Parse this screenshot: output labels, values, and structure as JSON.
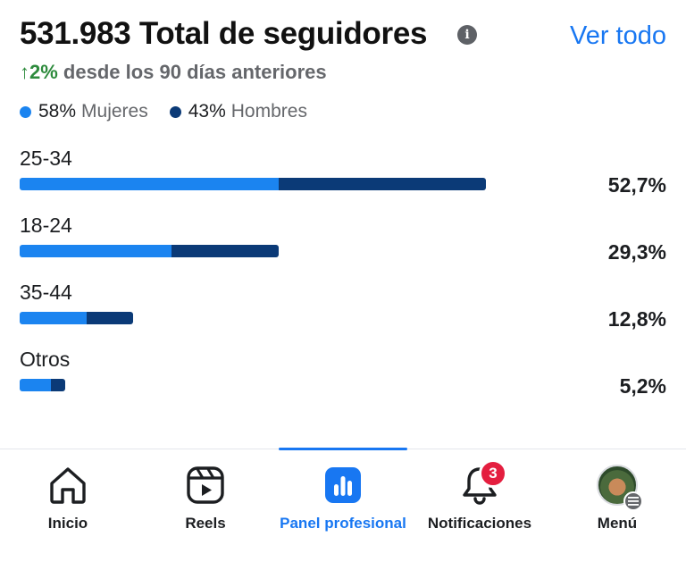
{
  "header": {
    "title": "531.983 Total de seguidores",
    "see_all": "Ver todo",
    "change_arrow": "↑",
    "change_pct": "2%",
    "change_text": " desde los 90 días anteriores"
  },
  "legend": {
    "women": {
      "pct": "58%",
      "label": "Mujeres",
      "color": "#1b84f0"
    },
    "men": {
      "pct": "43%",
      "label": "Hombres",
      "color": "#0b3a77"
    }
  },
  "rows": [
    {
      "label": "25-34",
      "value": "52,7%",
      "share": 0.527,
      "women_share": 0.555
    },
    {
      "label": "18-24",
      "value": "29,3%",
      "share": 0.293,
      "women_share": 0.585
    },
    {
      "label": "35-44",
      "value": "12,8%",
      "share": 0.128,
      "women_share": 0.59
    },
    {
      "label": "Otros",
      "value": "5,2%",
      "share": 0.052,
      "women_share": 0.69
    }
  ],
  "nav": {
    "home": "Inicio",
    "reels": "Reels",
    "dashboard": "Panel profesional",
    "notifications": "Notificaciones",
    "notifications_badge": "3",
    "menu": "Menú",
    "active_color": "#1877f2"
  }
}
